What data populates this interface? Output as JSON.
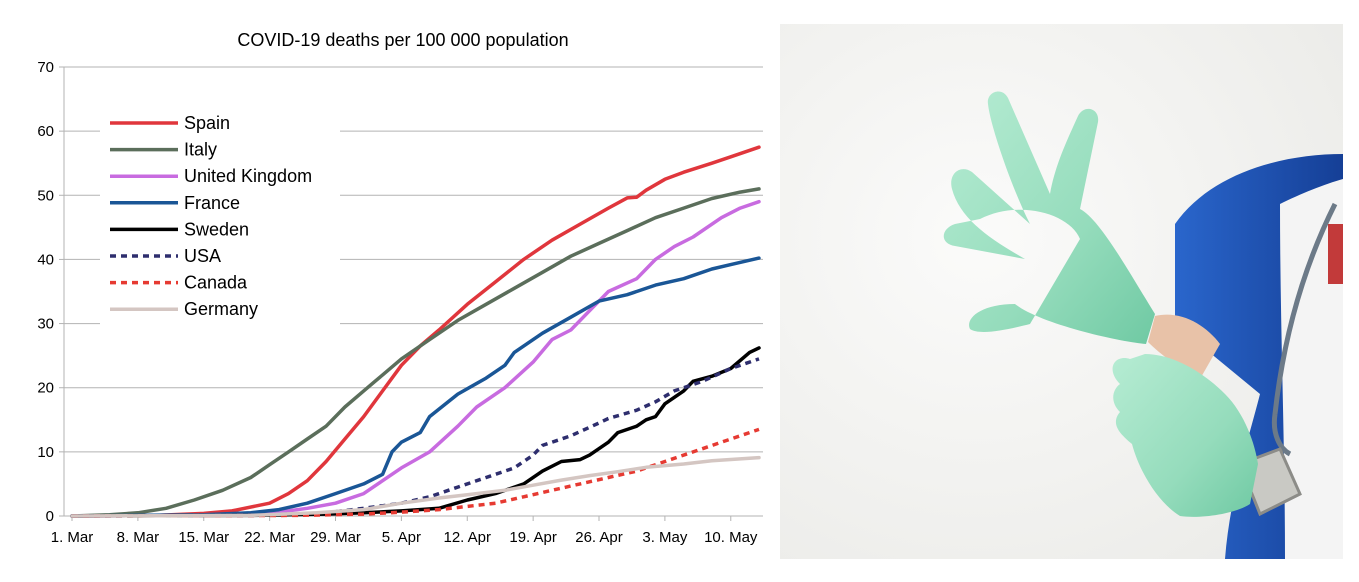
{
  "chart_data": {
    "type": "line",
    "title": "COVID-19 deaths per 100 000 population",
    "xlabel": "",
    "ylabel": "",
    "ylim": [
      0,
      70
    ],
    "y_ticks": [
      0,
      10,
      20,
      30,
      40,
      50,
      60,
      70
    ],
    "xlim": [
      "2020-03-01",
      "2020-05-13"
    ],
    "x_ticks": [
      "2020-03-01",
      "2020-03-08",
      "2020-03-15",
      "2020-03-22",
      "2020-03-29",
      "2020-04-05",
      "2020-04-12",
      "2020-04-19",
      "2020-04-26",
      "2020-05-03",
      "2020-05-10"
    ],
    "x_tick_labels": [
      "1. Mar",
      "8. Mar",
      "15. Mar",
      "22. Mar",
      "29. Mar",
      "5. Apr",
      "12. Apr",
      "19. Apr",
      "26. Apr",
      "3. May",
      "10. May"
    ],
    "grid": "horizontal",
    "legend_position": "top-left",
    "series": [
      {
        "name": "Spain",
        "color": "#e0363c",
        "dash": "solid",
        "points": [
          [
            "2020-03-01",
            0
          ],
          [
            "2020-03-10",
            0.1
          ],
          [
            "2020-03-15",
            0.4
          ],
          [
            "2020-03-18",
            0.8
          ],
          [
            "2020-03-22",
            2
          ],
          [
            "2020-03-24",
            3.5
          ],
          [
            "2020-03-26",
            5.5
          ],
          [
            "2020-03-28",
            8.5
          ],
          [
            "2020-03-30",
            12
          ],
          [
            "2020-04-01",
            15.5
          ],
          [
            "2020-04-03",
            19.5
          ],
          [
            "2020-04-05",
            23.5
          ],
          [
            "2020-04-07",
            26.5
          ],
          [
            "2020-04-09",
            29
          ],
          [
            "2020-04-12",
            33
          ],
          [
            "2020-04-15",
            36.5
          ],
          [
            "2020-04-18",
            40
          ],
          [
            "2020-04-21",
            43
          ],
          [
            "2020-04-24",
            45.5
          ],
          [
            "2020-04-27",
            48
          ],
          [
            "2020-04-29",
            49.6
          ],
          [
            "2020-04-30",
            49.7
          ],
          [
            "2020-05-01",
            50.8
          ],
          [
            "2020-05-03",
            52.5
          ],
          [
            "2020-05-05",
            53.6
          ],
          [
            "2020-05-08",
            55
          ],
          [
            "2020-05-10",
            56
          ],
          [
            "2020-05-13",
            57.5
          ]
        ]
      },
      {
        "name": "Italy",
        "color": "#5b6e5b",
        "dash": "solid",
        "points": [
          [
            "2020-03-01",
            0
          ],
          [
            "2020-03-05",
            0.2
          ],
          [
            "2020-03-08",
            0.5
          ],
          [
            "2020-03-11",
            1.2
          ],
          [
            "2020-03-14",
            2.5
          ],
          [
            "2020-03-17",
            4
          ],
          [
            "2020-03-20",
            6
          ],
          [
            "2020-03-22",
            8
          ],
          [
            "2020-03-24",
            10
          ],
          [
            "2020-03-26",
            12
          ],
          [
            "2020-03-28",
            14
          ],
          [
            "2020-03-30",
            17
          ],
          [
            "2020-04-01",
            19.5
          ],
          [
            "2020-04-03",
            22
          ],
          [
            "2020-04-05",
            24.5
          ],
          [
            "2020-04-08",
            27.5
          ],
          [
            "2020-04-11",
            30.5
          ],
          [
            "2020-04-14",
            33
          ],
          [
            "2020-04-17",
            35.5
          ],
          [
            "2020-04-20",
            38
          ],
          [
            "2020-04-23",
            40.5
          ],
          [
            "2020-04-26",
            42.5
          ],
          [
            "2020-04-29",
            44.5
          ],
          [
            "2020-05-02",
            46.5
          ],
          [
            "2020-05-05",
            48
          ],
          [
            "2020-05-08",
            49.5
          ],
          [
            "2020-05-11",
            50.5
          ],
          [
            "2020-05-13",
            51
          ]
        ]
      },
      {
        "name": "United Kingdom",
        "color": "#c86be0",
        "dash": "solid",
        "points": [
          [
            "2020-03-01",
            0
          ],
          [
            "2020-03-15",
            0.1
          ],
          [
            "2020-03-20",
            0.3
          ],
          [
            "2020-03-23",
            0.6
          ],
          [
            "2020-03-26",
            1.2
          ],
          [
            "2020-03-29",
            2
          ],
          [
            "2020-04-01",
            3.5
          ],
          [
            "2020-04-03",
            5.5
          ],
          [
            "2020-04-05",
            7.5
          ],
          [
            "2020-04-08",
            10
          ],
          [
            "2020-04-11",
            14
          ],
          [
            "2020-04-13",
            17
          ],
          [
            "2020-04-16",
            20
          ],
          [
            "2020-04-19",
            24
          ],
          [
            "2020-04-21",
            27.5
          ],
          [
            "2020-04-23",
            29
          ],
          [
            "2020-04-25",
            32
          ],
          [
            "2020-04-27",
            35
          ],
          [
            "2020-04-30",
            37
          ],
          [
            "2020-05-02",
            40
          ],
          [
            "2020-05-04",
            42
          ],
          [
            "2020-05-06",
            43.5
          ],
          [
            "2020-05-09",
            46.5
          ],
          [
            "2020-05-11",
            48
          ],
          [
            "2020-05-13",
            49
          ]
        ]
      },
      {
        "name": "France",
        "color": "#1a5696",
        "dash": "solid",
        "points": [
          [
            "2020-03-01",
            0
          ],
          [
            "2020-03-15",
            0.2
          ],
          [
            "2020-03-20",
            0.5
          ],
          [
            "2020-03-23",
            1
          ],
          [
            "2020-03-26",
            2
          ],
          [
            "2020-03-29",
            3.5
          ],
          [
            "2020-04-01",
            5
          ],
          [
            "2020-04-03",
            6.5
          ],
          [
            "2020-04-04",
            10
          ],
          [
            "2020-04-05",
            11.5
          ],
          [
            "2020-04-07",
            13
          ],
          [
            "2020-04-08",
            15.5
          ],
          [
            "2020-04-11",
            19
          ],
          [
            "2020-04-14",
            21.5
          ],
          [
            "2020-04-16",
            23.5
          ],
          [
            "2020-04-17",
            25.5
          ],
          [
            "2020-04-20",
            28.5
          ],
          [
            "2020-04-23",
            31
          ],
          [
            "2020-04-26",
            33.5
          ],
          [
            "2020-04-29",
            34.5
          ],
          [
            "2020-05-02",
            36
          ],
          [
            "2020-05-05",
            37
          ],
          [
            "2020-05-08",
            38.5
          ],
          [
            "2020-05-10",
            39.2
          ],
          [
            "2020-05-13",
            40.2
          ]
        ]
      },
      {
        "name": "Sweden",
        "color": "#000000",
        "dash": "solid",
        "points": [
          [
            "2020-03-01",
            0
          ],
          [
            "2020-03-20",
            0.1
          ],
          [
            "2020-03-28",
            0.3
          ],
          [
            "2020-04-01",
            0.5
          ],
          [
            "2020-04-05",
            0.8
          ],
          [
            "2020-04-09",
            1.2
          ],
          [
            "2020-04-12",
            2.5
          ],
          [
            "2020-04-15",
            3.5
          ],
          [
            "2020-04-18",
            5
          ],
          [
            "2020-04-20",
            7
          ],
          [
            "2020-04-22",
            8.5
          ],
          [
            "2020-04-24",
            8.8
          ],
          [
            "2020-04-25",
            9.5
          ],
          [
            "2020-04-27",
            11.5
          ],
          [
            "2020-04-28",
            13
          ],
          [
            "2020-04-30",
            14
          ],
          [
            "2020-05-01",
            15
          ],
          [
            "2020-05-02",
            15.5
          ],
          [
            "2020-05-03",
            17.5
          ],
          [
            "2020-05-05",
            19.5
          ],
          [
            "2020-05-06",
            21
          ],
          [
            "2020-05-08",
            21.8
          ],
          [
            "2020-05-10",
            23
          ],
          [
            "2020-05-12",
            25.5
          ],
          [
            "2020-05-13",
            26.2
          ]
        ]
      },
      {
        "name": "USA",
        "color": "#2e2e6e",
        "dash": "dashed",
        "points": [
          [
            "2020-03-01",
            0
          ],
          [
            "2020-03-20",
            0.1
          ],
          [
            "2020-03-28",
            0.5
          ],
          [
            "2020-04-01",
            1.2
          ],
          [
            "2020-04-05",
            2
          ],
          [
            "2020-04-08",
            3
          ],
          [
            "2020-04-11",
            4.5
          ],
          [
            "2020-04-14",
            6
          ],
          [
            "2020-04-17",
            7.5
          ],
          [
            "2020-04-19",
            9.5
          ],
          [
            "2020-04-20",
            11
          ],
          [
            "2020-04-23",
            12.5
          ],
          [
            "2020-04-26",
            14.5
          ],
          [
            "2020-04-27",
            15.2
          ],
          [
            "2020-04-30",
            16.5
          ],
          [
            "2020-05-02",
            17.8
          ],
          [
            "2020-05-04",
            19.5
          ],
          [
            "2020-05-07",
            21
          ],
          [
            "2020-05-10",
            23
          ],
          [
            "2020-05-13",
            24.5
          ]
        ]
      },
      {
        "name": "Canada",
        "color": "#e63a32",
        "dash": "dashed",
        "points": [
          [
            "2020-03-01",
            0
          ],
          [
            "2020-03-25",
            0.1
          ],
          [
            "2020-04-01",
            0.3
          ],
          [
            "2020-04-05",
            0.6
          ],
          [
            "2020-04-09",
            1
          ],
          [
            "2020-04-12",
            1.5
          ],
          [
            "2020-04-15",
            2
          ],
          [
            "2020-04-18",
            3
          ],
          [
            "2020-04-21",
            4
          ],
          [
            "2020-04-24",
            5
          ],
          [
            "2020-04-27",
            6
          ],
          [
            "2020-04-30",
            7
          ],
          [
            "2020-05-03",
            8.5
          ],
          [
            "2020-05-06",
            10
          ],
          [
            "2020-05-09",
            11.5
          ],
          [
            "2020-05-13",
            13.5
          ]
        ]
      },
      {
        "name": "Germany",
        "color": "#d4c6c2",
        "dash": "solid",
        "points": [
          [
            "2020-03-01",
            0
          ],
          [
            "2020-03-20",
            0.1
          ],
          [
            "2020-03-27",
            0.5
          ],
          [
            "2020-04-01",
            1
          ],
          [
            "2020-04-05",
            2
          ],
          [
            "2020-04-09",
            2.8
          ],
          [
            "2020-04-12",
            3.3
          ],
          [
            "2020-04-16",
            4
          ],
          [
            "2020-04-19",
            4.8
          ],
          [
            "2020-04-22",
            5.6
          ],
          [
            "2020-04-25",
            6.3
          ],
          [
            "2020-04-28",
            6.9
          ],
          [
            "2020-05-01",
            7.6
          ],
          [
            "2020-05-05",
            8.1
          ],
          [
            "2020-05-08",
            8.6
          ],
          [
            "2020-05-11",
            8.9
          ],
          [
            "2020-05-13",
            9.1
          ]
        ]
      }
    ]
  },
  "colors": {
    "gridline": "#b3b3b3",
    "axis": "#b3b3b3",
    "background": "#ffffff",
    "glove": "#9ce0c2",
    "scrubs": "#1c55b8",
    "photo_background": "#f1f1ef"
  },
  "photo": {
    "subject": "hands-putting-on-green-nitrile-gloves"
  }
}
